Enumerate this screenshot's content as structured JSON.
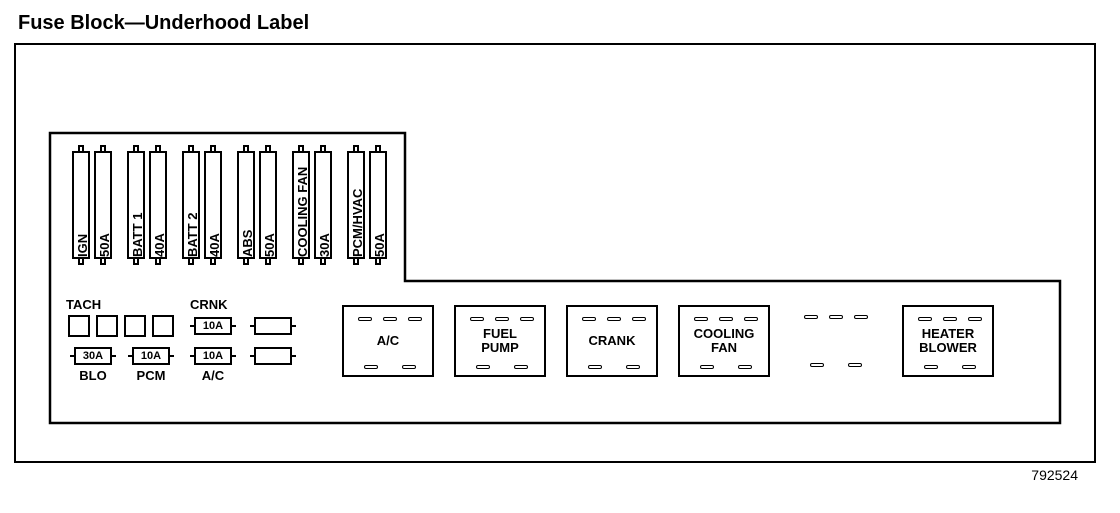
{
  "title": "Fuse Block—Underhood Label",
  "figure_id": "792524",
  "style": {
    "bg": "#ffffff",
    "stroke": "#000000",
    "stroke_width": 2,
    "font_family": "Arial, Helvetica, sans-serif",
    "title_fontsize": 20,
    "label_fontsize": 13,
    "mini_fontsize": 11
  },
  "big_fuses": [
    {
      "name": "IGN",
      "rating": "50A"
    },
    {
      "name": "BATT 1",
      "rating": "40A"
    },
    {
      "name": "BATT 2",
      "rating": "40A"
    },
    {
      "name": "ABS",
      "rating": "50A"
    },
    {
      "name": "COOLING FAN",
      "rating": "30A"
    },
    {
      "name": "PCM/HVAC",
      "rating": "50A"
    }
  ],
  "small_row_top": {
    "label_left": "TACH",
    "label_right": "CRNK",
    "squares_count": 4,
    "mini_right": "10A",
    "blanks": 1
  },
  "small_row_bottom": {
    "minis": [
      "30A",
      "10A",
      "10A"
    ],
    "labels": [
      "BLO",
      "PCM",
      "A/C"
    ],
    "blanks": 1
  },
  "relays": [
    {
      "name": "A/C",
      "has_box": true
    },
    {
      "name": "FUEL\nPUMP",
      "has_box": true
    },
    {
      "name": "CRANK",
      "has_box": true
    },
    {
      "name": "COOLING\nFAN",
      "has_box": true
    },
    {
      "name": "",
      "has_box": false
    },
    {
      "name": "HEATER\nBLOWER",
      "has_box": true
    }
  ]
}
